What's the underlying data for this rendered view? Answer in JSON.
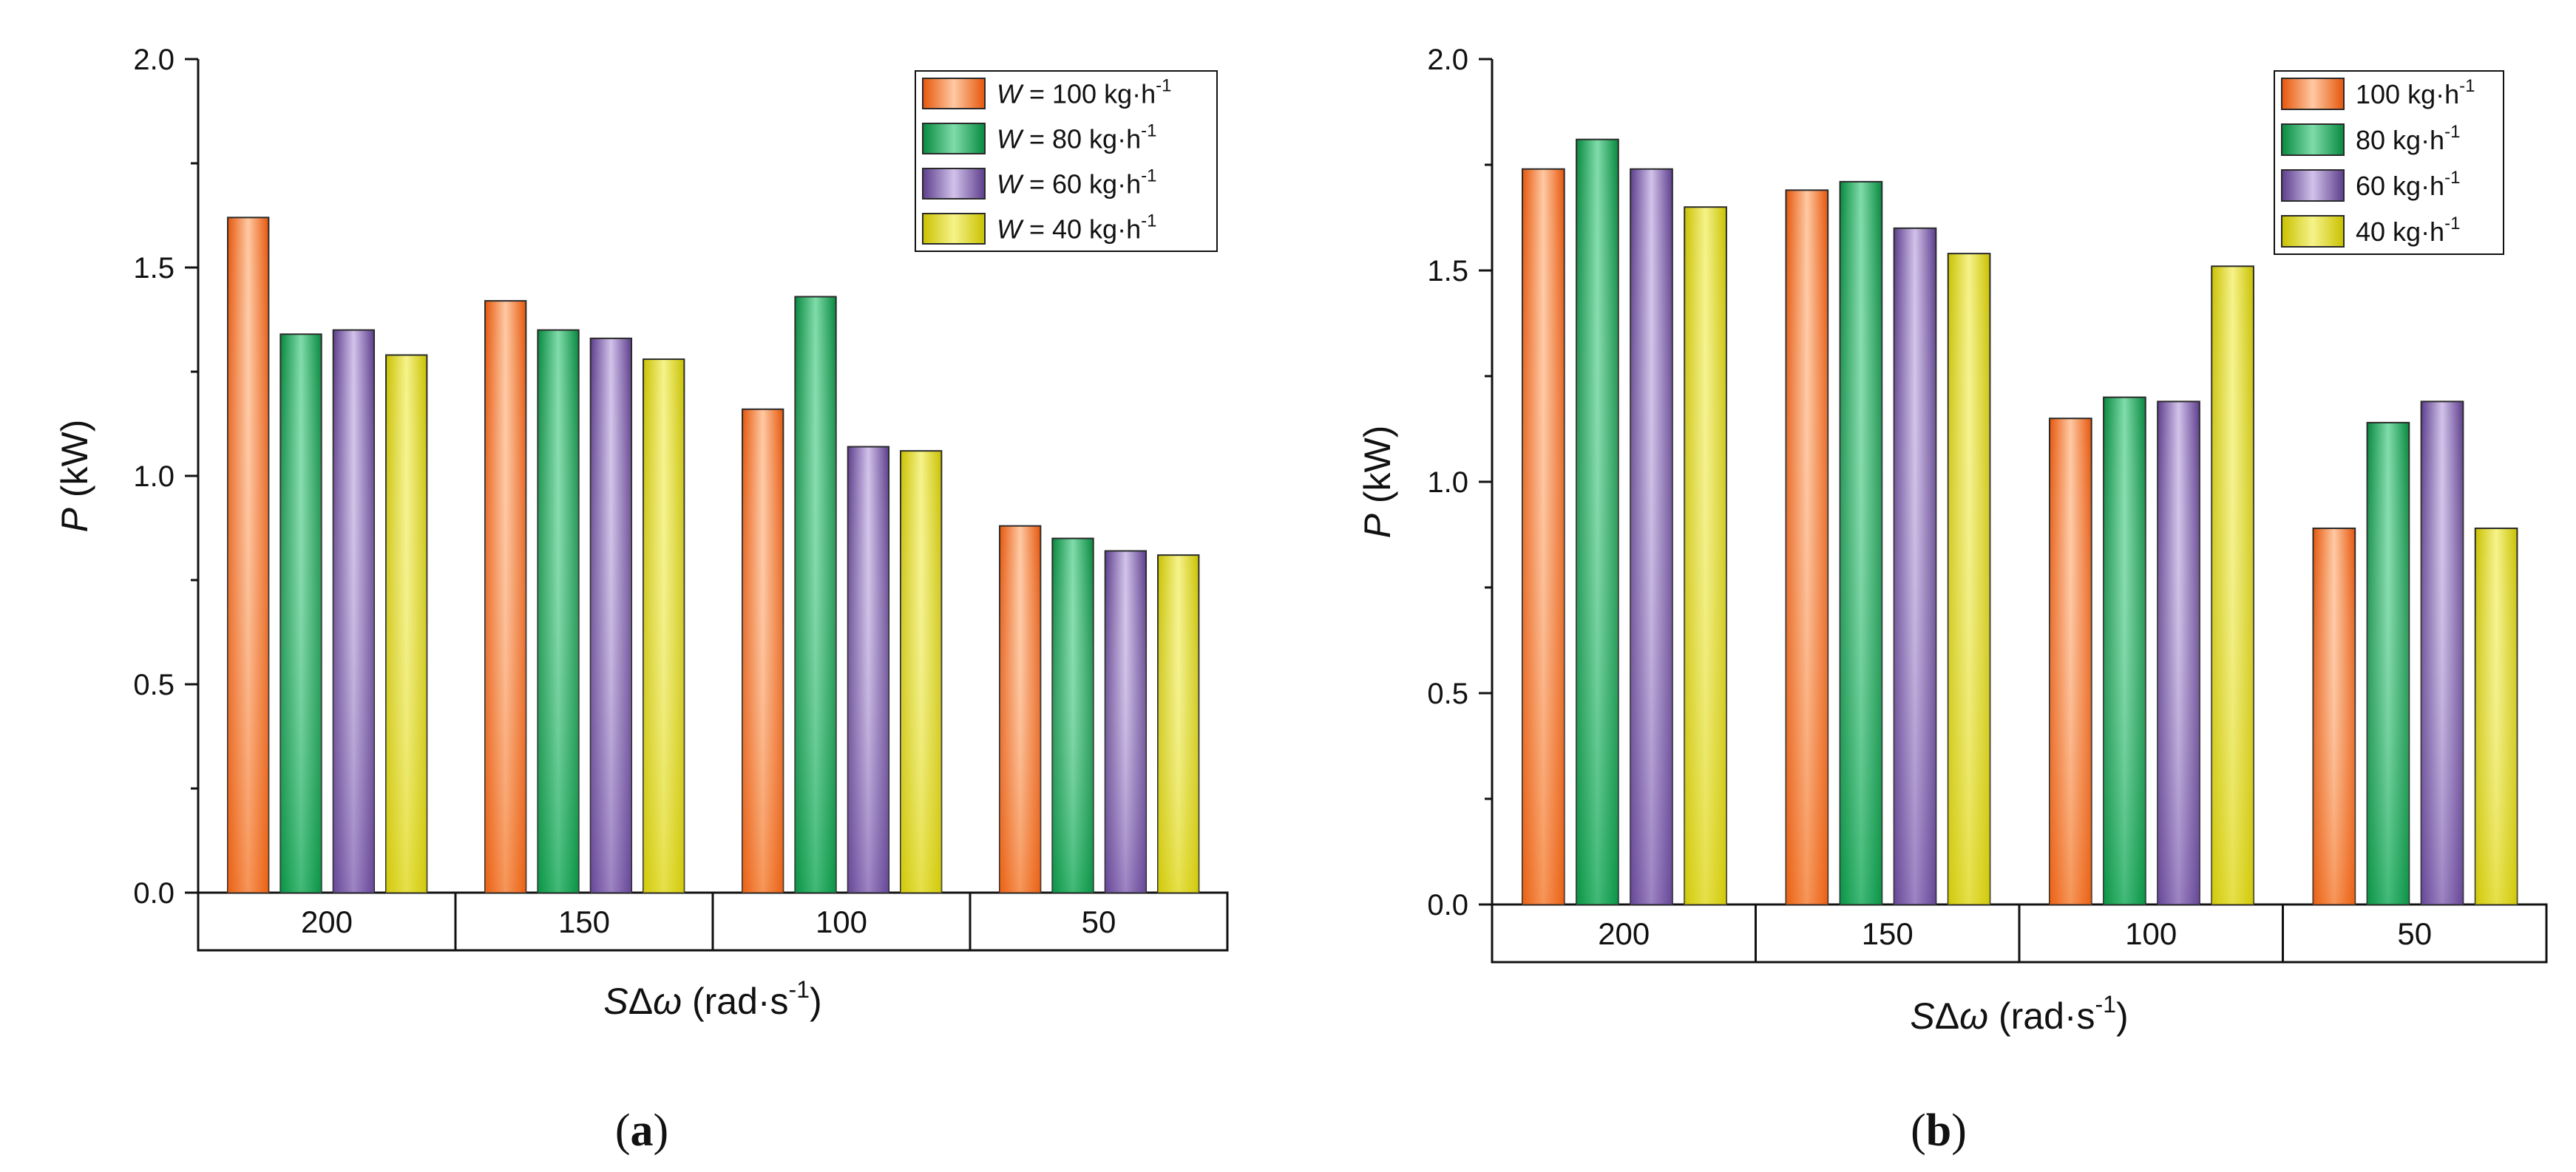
{
  "chart_data": [
    {
      "panel_label": "a",
      "type": "bar",
      "xlabel": "SΔω (rad·s",
      "xlabel_parts": {
        "symbol": "S",
        "delta_omega": "Δω",
        "unit_pre": "(rad·s",
        "unit_exp": "-1",
        "unit_post": ")"
      },
      "ylabel": "P (kW)",
      "ylabel_parts": {
        "symbol": "P",
        "unit": "(kW)"
      },
      "ylim": [
        0,
        2.0
      ],
      "yticks": [
        "0.0",
        "0.5",
        "1.0",
        "1.5",
        "2.0"
      ],
      "categories": [
        "200",
        "150",
        "100",
        "50"
      ],
      "legend_position": "top-right",
      "series": [
        {
          "name": "W = 100 kg·h-1",
          "label_prefix": "W",
          "label_main": " = 100 kg·h",
          "label_exp": "-1",
          "color_key": "orange",
          "values": [
            1.62,
            1.42,
            1.16,
            0.88
          ]
        },
        {
          "name": "W = 80 kg·h-1",
          "label_prefix": "W",
          "label_main": " = 80 kg·h",
          "label_exp": "-1",
          "color_key": "green",
          "values": [
            1.34,
            1.35,
            1.43,
            0.85
          ]
        },
        {
          "name": "W = 60 kg·h-1",
          "label_prefix": "W",
          "label_main": " = 60 kg·h",
          "label_exp": "-1",
          "color_key": "purple",
          "values": [
            1.35,
            1.33,
            1.07,
            0.82
          ]
        },
        {
          "name": "W = 40 kg·h-1",
          "label_prefix": "W",
          "label_main": " = 40 kg·h",
          "label_exp": "-1",
          "color_key": "yellow",
          "values": [
            1.29,
            1.28,
            1.06,
            0.81
          ]
        }
      ]
    },
    {
      "panel_label": "b",
      "type": "bar",
      "xlabel": "SΔω (rad·s",
      "xlabel_parts": {
        "symbol": "S",
        "delta_omega": "Δω",
        "unit_pre": "(rad·s",
        "unit_exp": "-1",
        "unit_post": ")"
      },
      "ylabel": "P (kW)",
      "ylabel_parts": {
        "symbol": "P",
        "unit": "(kW)"
      },
      "ylim": [
        0,
        2.0
      ],
      "yticks": [
        "0.0",
        "0.5",
        "1.0",
        "1.5",
        "2.0"
      ],
      "categories": [
        "200",
        "150",
        "100",
        "50"
      ],
      "legend_position": "top-right",
      "series": [
        {
          "name": "100 kg·h-1",
          "label_prefix": "",
          "label_main": "100 kg·h",
          "label_exp": "-1",
          "color_key": "orange",
          "values": [
            1.74,
            1.69,
            1.15,
            0.89
          ]
        },
        {
          "name": "80 kg·h-1",
          "label_prefix": "",
          "label_main": "80 kg·h",
          "label_exp": "-1",
          "color_key": "green",
          "values": [
            1.81,
            1.71,
            1.2,
            1.14
          ]
        },
        {
          "name": "60 kg·h-1",
          "label_prefix": "",
          "label_main": "60 kg·h",
          "label_exp": "-1",
          "color_key": "purple",
          "values": [
            1.74,
            1.6,
            1.19,
            1.19
          ]
        },
        {
          "name": "40 kg·h-1",
          "label_prefix": "",
          "label_main": "40 kg·h",
          "label_exp": "-1",
          "color_key": "yellow",
          "values": [
            1.65,
            1.54,
            1.51,
            0.89
          ]
        }
      ]
    }
  ],
  "colors": {
    "orange": {
      "edge": "#e6560a",
      "mid": "#ffc9a3",
      "base": "#ee6a1a"
    },
    "green": {
      "edge": "#07893f",
      "mid": "#7fdcaa",
      "base": "#0e9d4c"
    },
    "purple": {
      "edge": "#5c3d8c",
      "mid": "#d2c2ea",
      "base": "#6f4fa1"
    },
    "yellow": {
      "edge": "#c9c100",
      "mid": "#f6f38a",
      "base": "#d8d012"
    },
    "axis": "#111111",
    "bar_outline": "#2a2a2a"
  }
}
